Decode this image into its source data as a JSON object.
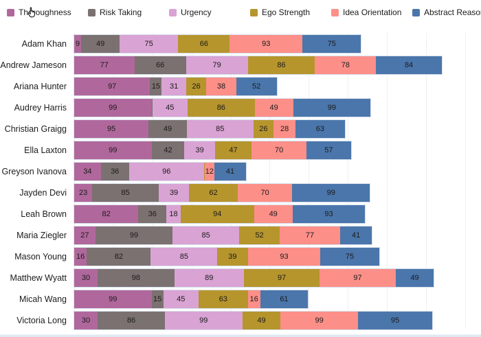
{
  "page": {
    "background": "#ffffff",
    "bottom_strip_color": "#dfe9f4"
  },
  "chart_data": {
    "type": "bar",
    "orientation": "horizontal",
    "stacked": true,
    "legend_position": "top",
    "grid": "vertical",
    "value_labels": "inside-center",
    "xlim": [
      0,
      515
    ],
    "gridline_step": 50,
    "min_label_value": 3,
    "categories": [
      "Adam Khan",
      "Andrew Jameson",
      "Ariana Hunter",
      "Audrey Harris",
      "Christian Graigg",
      "Ella Laxton",
      "Greyson Ivanova",
      "Jayden Devi",
      "Leah Brown",
      "Maria Ziegler",
      "Mason Young",
      "Matthew Wyatt",
      "Micah Wang",
      "Victoria Long"
    ],
    "series": [
      {
        "name": "Thoroughness",
        "color": "#b0689c",
        "values": [
          9,
          77,
          97,
          99,
          95,
          99,
          34,
          23,
          82,
          27,
          16,
          30,
          99,
          30
        ]
      },
      {
        "name": "Risk Taking",
        "color": "#7b7170",
        "values": [
          49,
          66,
          15,
          1,
          49,
          42,
          36,
          85,
          36,
          99,
          82,
          98,
          15,
          86
        ]
      },
      {
        "name": "Urgency",
        "color": "#d9a3d4",
        "values": [
          75,
          79,
          31,
          45,
          85,
          39,
          96,
          39,
          18,
          85,
          85,
          89,
          45,
          99
        ]
      },
      {
        "name": "Ego Strength",
        "color": "#b6952d",
        "values": [
          66,
          86,
          26,
          86,
          26,
          47,
          1,
          62,
          94,
          52,
          39,
          97,
          63,
          49
        ]
      },
      {
        "name": "Idea Orientation",
        "color": "#fc8f88",
        "values": [
          93,
          78,
          38,
          49,
          28,
          70,
          12,
          70,
          49,
          77,
          93,
          97,
          16,
          99
        ]
      },
      {
        "name": "Abstract Reasoning",
        "color": "#4a76ab",
        "values": [
          75,
          84,
          52,
          99,
          63,
          57,
          41,
          99,
          93,
          41,
          75,
          49,
          61,
          95
        ]
      }
    ]
  }
}
